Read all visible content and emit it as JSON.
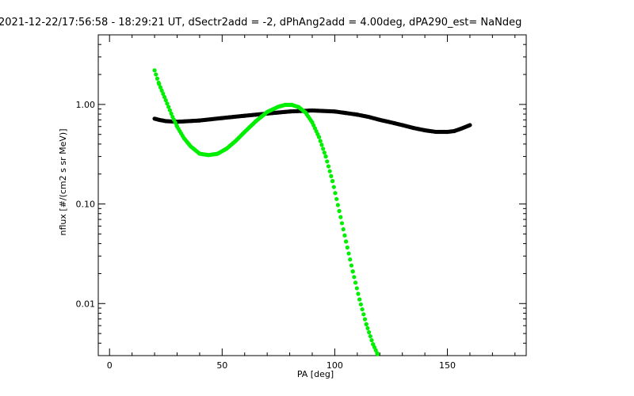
{
  "chart_data": {
    "type": "scatter",
    "title": "2021-12-22/17:56:58 - 18:29:21 UT, dSectr2add = -2, dPhAng2add = 4.00deg, dPA290_est=   NaNdeg",
    "xlabel": "PA [deg]",
    "ylabel": "nflux [#/(cm2 s sr MeV)]",
    "xlim": [
      -5,
      185
    ],
    "ylim": [
      0.003,
      5.0
    ],
    "yscale": "log",
    "xticks": [
      {
        "value": 0,
        "label": "0"
      },
      {
        "value": 50,
        "label": "50"
      },
      {
        "value": 100,
        "label": "100"
      },
      {
        "value": 150,
        "label": "150"
      }
    ],
    "yticks": [
      {
        "value": 0.01,
        "label": "0.01"
      },
      {
        "value": 0.1,
        "label": "0.10"
      },
      {
        "value": 1.0,
        "label": "1.00"
      }
    ],
    "grid": false,
    "series": [
      {
        "color": "#000000",
        "x": [
          20,
          22,
          25,
          30,
          35,
          40,
          45,
          50,
          55,
          60,
          65,
          70,
          75,
          80,
          85,
          90,
          95,
          100,
          105,
          110,
          115,
          120,
          125,
          130,
          135,
          140,
          145,
          150,
          153,
          156,
          160
        ],
        "y": [
          0.72,
          0.7,
          0.68,
          0.67,
          0.68,
          0.69,
          0.71,
          0.73,
          0.75,
          0.77,
          0.79,
          0.81,
          0.83,
          0.85,
          0.86,
          0.87,
          0.86,
          0.85,
          0.82,
          0.79,
          0.75,
          0.7,
          0.66,
          0.62,
          0.58,
          0.55,
          0.53,
          0.53,
          0.54,
          0.57,
          0.62
        ]
      },
      {
        "color": "#00ee00",
        "x": [
          20,
          22,
          25,
          28,
          30,
          33,
          36,
          40,
          44,
          48,
          52,
          56,
          60,
          65,
          70,
          75,
          78,
          81,
          84,
          87,
          90,
          93,
          96,
          99,
          102,
          105,
          108,
          111,
          114,
          117,
          119
        ],
        "y": [
          2.2,
          1.6,
          1.1,
          0.75,
          0.6,
          0.46,
          0.38,
          0.32,
          0.31,
          0.32,
          0.36,
          0.43,
          0.53,
          0.68,
          0.84,
          0.95,
          0.99,
          0.99,
          0.94,
          0.83,
          0.66,
          0.47,
          0.3,
          0.17,
          0.085,
          0.042,
          0.021,
          0.011,
          0.0062,
          0.0039,
          0.0031
        ]
      }
    ]
  }
}
